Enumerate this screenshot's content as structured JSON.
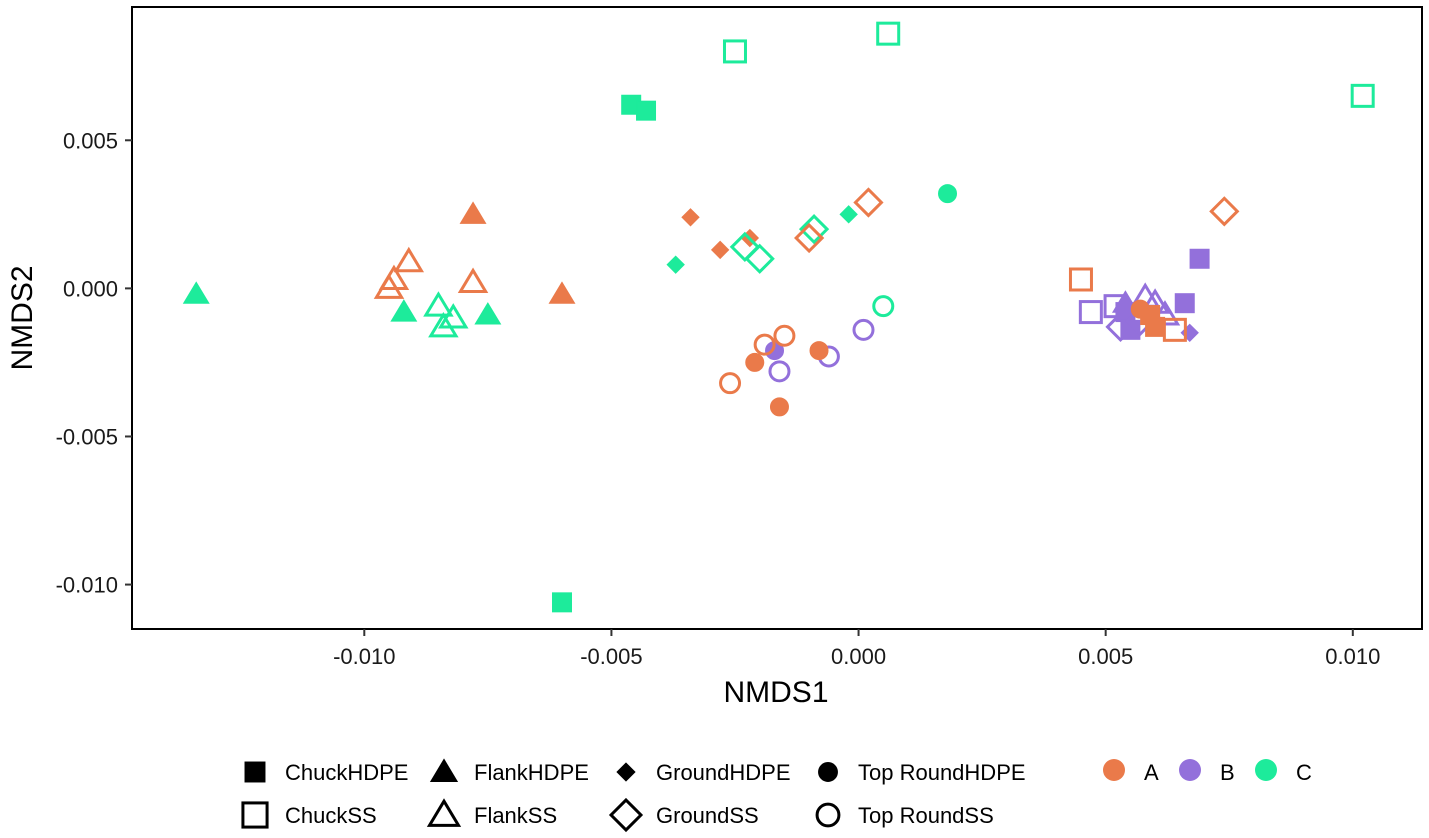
{
  "chart_data": {
    "type": "scatter",
    "title": "",
    "xlabel": "NMDS1",
    "ylabel": "NMDS2",
    "xlim": [
      -0.0147,
      0.0114
    ],
    "ylim": [
      -0.0115,
      0.0095
    ],
    "grid": false,
    "x_ticks": [
      {
        "value": -0.01,
        "label": "-0.010"
      },
      {
        "value": -0.005,
        "label": "-0.005"
      },
      {
        "value": 0.0,
        "label": "0.000"
      },
      {
        "value": 0.005,
        "label": "0.005"
      },
      {
        "value": 0.01,
        "label": "0.010"
      }
    ],
    "y_ticks": [
      {
        "value": 0.005,
        "label": "0.005"
      },
      {
        "value": 0.0,
        "label": "0.000"
      },
      {
        "value": -0.005,
        "label": "-0.005"
      },
      {
        "value": -0.01,
        "label": "-0.010"
      }
    ],
    "colors": {
      "A": "#EA7A4A",
      "B": "#9370DB",
      "C": "#1DEB9B"
    },
    "shape_legend": [
      {
        "shape": "square-filled",
        "label": "ChuckHDPE"
      },
      {
        "shape": "triangle-filled",
        "label": "FlankHDPE"
      },
      {
        "shape": "diamond-filled",
        "label": "GroundHDPE"
      },
      {
        "shape": "circle-filled",
        "label": "Top RoundHDPE"
      },
      {
        "shape": "square-open",
        "label": "ChuckSS"
      },
      {
        "shape": "triangle-open",
        "label": "FlankSS"
      },
      {
        "shape": "diamond-open",
        "label": "GroundSS"
      },
      {
        "shape": "circle-open",
        "label": "Top RoundSS"
      }
    ],
    "color_legend": [
      {
        "group": "A",
        "label": "A"
      },
      {
        "group": "B",
        "label": "B"
      },
      {
        "group": "C",
        "label": "C"
      }
    ],
    "legend_position": "bottom",
    "points": [
      {
        "x": -0.0134,
        "y": -0.0002,
        "shape": "triangle-filled",
        "group": "C"
      },
      {
        "x": -0.0095,
        "y": 0.0,
        "shape": "triangle-open",
        "group": "A"
      },
      {
        "x": -0.0094,
        "y": 0.0003,
        "shape": "triangle-open",
        "group": "A"
      },
      {
        "x": -0.0091,
        "y": 0.0009,
        "shape": "triangle-open",
        "group": "A"
      },
      {
        "x": -0.0078,
        "y": 0.0025,
        "shape": "triangle-filled",
        "group": "A"
      },
      {
        "x": -0.0078,
        "y": 0.0002,
        "shape": "triangle-open",
        "group": "A"
      },
      {
        "x": -0.006,
        "y": -0.0002,
        "shape": "triangle-filled",
        "group": "A"
      },
      {
        "x": -0.0092,
        "y": -0.0008,
        "shape": "triangle-filled",
        "group": "C"
      },
      {
        "x": -0.0075,
        "y": -0.0009,
        "shape": "triangle-filled",
        "group": "C"
      },
      {
        "x": -0.0085,
        "y": -0.0006,
        "shape": "triangle-open",
        "group": "C"
      },
      {
        "x": -0.0082,
        "y": -0.001,
        "shape": "triangle-open",
        "group": "C"
      },
      {
        "x": -0.0084,
        "y": -0.0013,
        "shape": "triangle-open",
        "group": "C"
      },
      {
        "x": -0.006,
        "y": -0.0106,
        "shape": "square-filled",
        "group": "C"
      },
      {
        "x": -0.0046,
        "y": 0.0062,
        "shape": "square-filled",
        "group": "C"
      },
      {
        "x": -0.0043,
        "y": 0.006,
        "shape": "square-filled",
        "group": "C"
      },
      {
        "x": -0.0025,
        "y": 0.008,
        "shape": "square-open",
        "group": "C"
      },
      {
        "x": 0.0006,
        "y": 0.0086,
        "shape": "square-open",
        "group": "C"
      },
      {
        "x": 0.0102,
        "y": 0.0065,
        "shape": "square-open",
        "group": "C"
      },
      {
        "x": -0.0034,
        "y": 0.0024,
        "shape": "diamond-filled",
        "group": "A"
      },
      {
        "x": -0.0028,
        "y": 0.0013,
        "shape": "diamond-filled",
        "group": "A"
      },
      {
        "x": -0.0022,
        "y": 0.0017,
        "shape": "diamond-filled",
        "group": "A"
      },
      {
        "x": -0.0037,
        "y": 0.0008,
        "shape": "diamond-filled",
        "group": "C"
      },
      {
        "x": -0.0002,
        "y": 0.0025,
        "shape": "diamond-filled",
        "group": "C"
      },
      {
        "x": -0.0023,
        "y": 0.0014,
        "shape": "diamond-open",
        "group": "C"
      },
      {
        "x": -0.002,
        "y": 0.001,
        "shape": "diamond-open",
        "group": "C"
      },
      {
        "x": -0.0009,
        "y": 0.002,
        "shape": "diamond-open",
        "group": "C"
      },
      {
        "x": -0.001,
        "y": 0.0017,
        "shape": "diamond-open",
        "group": "A"
      },
      {
        "x": 0.0002,
        "y": 0.0029,
        "shape": "diamond-open",
        "group": "A"
      },
      {
        "x": 0.0074,
        "y": 0.0026,
        "shape": "diamond-open",
        "group": "A"
      },
      {
        "x": 0.0018,
        "y": 0.0032,
        "shape": "circle-filled",
        "group": "C"
      },
      {
        "x": 0.0005,
        "y": -0.0006,
        "shape": "circle-open",
        "group": "C"
      },
      {
        "x": 0.0001,
        "y": -0.0014,
        "shape": "circle-open",
        "group": "B"
      },
      {
        "x": -0.0006,
        "y": -0.0023,
        "shape": "circle-open",
        "group": "B"
      },
      {
        "x": -0.0016,
        "y": -0.0028,
        "shape": "circle-open",
        "group": "B"
      },
      {
        "x": -0.0017,
        "y": -0.0021,
        "shape": "circle-filled",
        "group": "B"
      },
      {
        "x": -0.0008,
        "y": -0.0021,
        "shape": "circle-filled",
        "group": "A"
      },
      {
        "x": -0.0021,
        "y": -0.0025,
        "shape": "circle-filled",
        "group": "A"
      },
      {
        "x": -0.0016,
        "y": -0.004,
        "shape": "circle-filled",
        "group": "A"
      },
      {
        "x": -0.0026,
        "y": -0.0032,
        "shape": "circle-open",
        "group": "A"
      },
      {
        "x": -0.0019,
        "y": -0.0019,
        "shape": "circle-open",
        "group": "A"
      },
      {
        "x": -0.0015,
        "y": -0.0016,
        "shape": "circle-open",
        "group": "A"
      },
      {
        "x": 0.0045,
        "y": 0.0003,
        "shape": "square-open",
        "group": "A"
      },
      {
        "x": 0.0069,
        "y": 0.001,
        "shape": "square-filled",
        "group": "B"
      },
      {
        "x": 0.0066,
        "y": -0.0005,
        "shape": "square-filled",
        "group": "B"
      },
      {
        "x": 0.0067,
        "y": -0.0015,
        "shape": "diamond-filled",
        "group": "B"
      },
      {
        "x": 0.0047,
        "y": -0.0008,
        "shape": "square-open",
        "group": "B"
      },
      {
        "x": 0.0052,
        "y": -0.0006,
        "shape": "square-open",
        "group": "B"
      },
      {
        "x": 0.0054,
        "y": -0.0008,
        "shape": "square-filled",
        "group": "B"
      },
      {
        "x": 0.0053,
        "y": -0.0013,
        "shape": "diamond-open",
        "group": "B"
      },
      {
        "x": 0.0055,
        "y": -0.0014,
        "shape": "square-filled",
        "group": "B"
      },
      {
        "x": 0.0054,
        "y": -0.0005,
        "shape": "triangle-filled",
        "group": "B"
      },
      {
        "x": 0.0058,
        "y": -0.0003,
        "shape": "triangle-open",
        "group": "B"
      },
      {
        "x": 0.006,
        "y": -0.0005,
        "shape": "triangle-open",
        "group": "B"
      },
      {
        "x": 0.0057,
        "y": -0.0011,
        "shape": "diamond-open",
        "group": "B"
      },
      {
        "x": 0.0062,
        "y": -0.0009,
        "shape": "triangle-open",
        "group": "B"
      },
      {
        "x": 0.0057,
        "y": -0.0007,
        "shape": "circle-filled",
        "group": "A"
      },
      {
        "x": 0.0059,
        "y": -0.0009,
        "shape": "square-filled",
        "group": "A"
      },
      {
        "x": 0.006,
        "y": -0.0013,
        "shape": "square-filled",
        "group": "A"
      },
      {
        "x": 0.0064,
        "y": -0.0014,
        "shape": "square-open",
        "group": "A"
      }
    ]
  }
}
